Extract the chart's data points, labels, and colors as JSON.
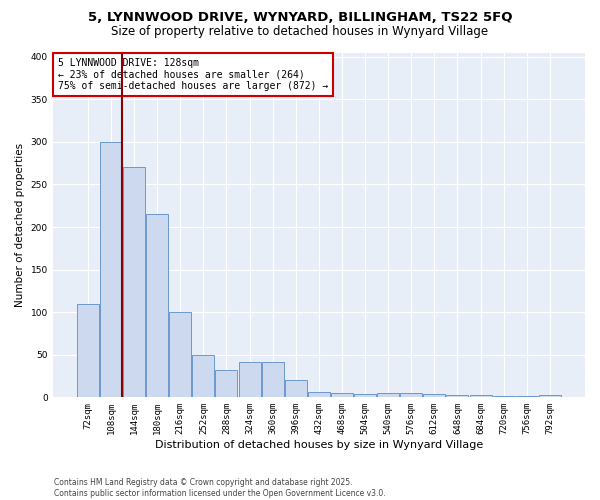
{
  "title_line1": "5, LYNNWOOD DRIVE, WYNYARD, BILLINGHAM, TS22 5FQ",
  "title_line2": "Size of property relative to detached houses in Wynyard Village",
  "xlabel": "Distribution of detached houses by size in Wynyard Village",
  "ylabel": "Number of detached properties",
  "bin_labels": [
    "72sqm",
    "108sqm",
    "144sqm",
    "180sqm",
    "216sqm",
    "252sqm",
    "288sqm",
    "324sqm",
    "360sqm",
    "396sqm",
    "432sqm",
    "468sqm",
    "504sqm",
    "540sqm",
    "576sqm",
    "612sqm",
    "648sqm",
    "684sqm",
    "720sqm",
    "756sqm",
    "792sqm"
  ],
  "bar_values": [
    110,
    300,
    270,
    215,
    100,
    50,
    32,
    42,
    42,
    20,
    6,
    5,
    4,
    5,
    5,
    4,
    3,
    3,
    2,
    2,
    3
  ],
  "bar_color": "#cdd9ee",
  "bar_edge_color": "#5b8cc8",
  "vline_x_bar_idx": 1.5,
  "vline_color": "#8b0000",
  "annotation_text": "5 LYNNWOOD DRIVE: 128sqm\n← 23% of detached houses are smaller (264)\n75% of semi-detached houses are larger (872) →",
  "annotation_box_color": "white",
  "annotation_box_edge": "#cc0000",
  "ylim": [
    0,
    405
  ],
  "yticks": [
    0,
    50,
    100,
    150,
    200,
    250,
    300,
    350,
    400
  ],
  "footer_line1": "Contains HM Land Registry data © Crown copyright and database right 2025.",
  "footer_line2": "Contains public sector information licensed under the Open Government Licence v3.0.",
  "bg_color": "#ffffff",
  "plot_bg_color": "#e8eef8",
  "grid_color": "#ffffff",
  "title1_fontsize": 9.5,
  "title2_fontsize": 8.5,
  "xlabel_fontsize": 8,
  "ylabel_fontsize": 7.5,
  "tick_fontsize": 6.5,
  "footer_fontsize": 5.5,
  "annot_fontsize": 7
}
